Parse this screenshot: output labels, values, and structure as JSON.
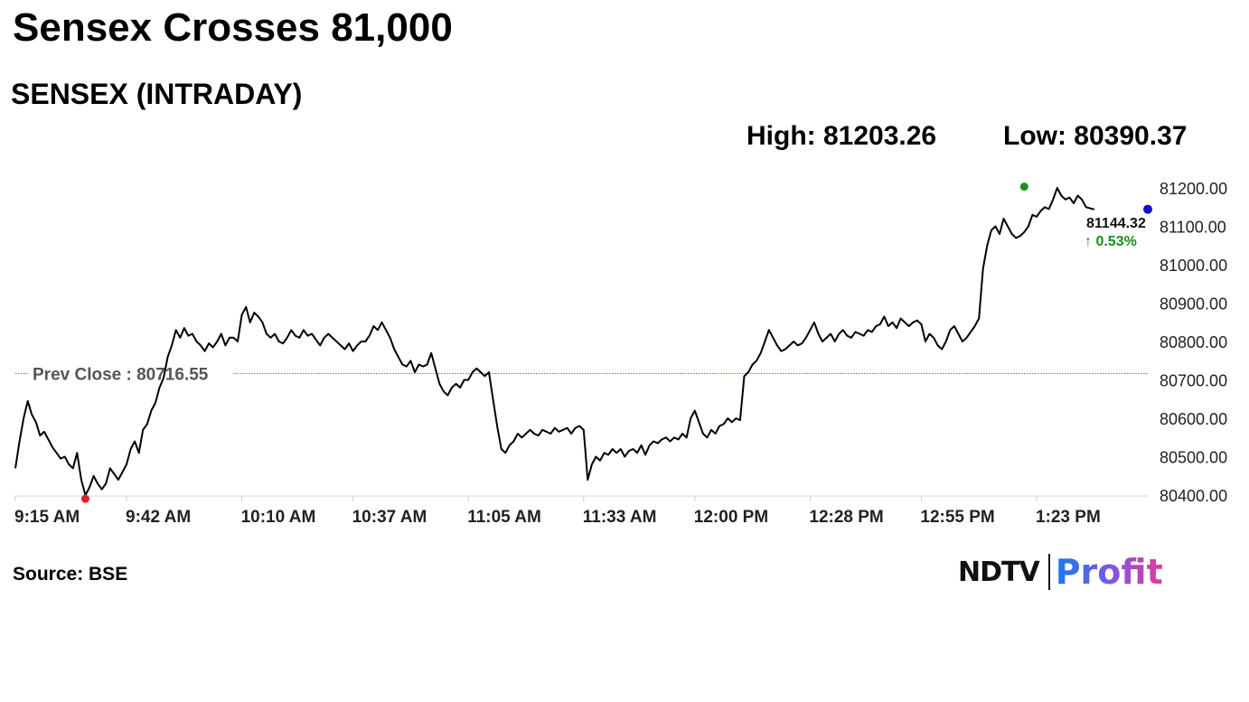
{
  "headline": "Sensex Crosses 81,000",
  "subheadline": "SENSEX (INTRADAY)",
  "stats": {
    "high_label": "High: 81203.26",
    "low_label": "Low: 80390.37"
  },
  "source": "Source: BSE",
  "brand": {
    "ndtv": "NDTV",
    "profit": "Profit"
  },
  "colors": {
    "line": "#000000",
    "prev_close_line": "#d9534f",
    "high_marker": "#1a8f1a",
    "low_marker": "#e02020",
    "last_marker": "#1010c8",
    "up_change": "#1a8f1a"
  },
  "chart_data": {
    "type": "line",
    "title": "SENSEX (INTRADAY)",
    "ylim": [
      80400,
      81250
    ],
    "y_ticks": [
      "80400.00",
      "80500.00",
      "80600.00",
      "80700.00",
      "80800.00",
      "80900.00",
      "81000.00",
      "81100.00",
      "81200.00"
    ],
    "x_ticks": [
      "9:15 AM",
      "9:42 AM",
      "10:10 AM",
      "10:37 AM",
      "11:05 AM",
      "11:33 AM",
      "12:00 PM",
      "12:28 PM",
      "12:55 PM",
      "1:23 PM"
    ],
    "x_unit": "minutes since 9:15 AM",
    "x_tick_minutes": [
      0,
      27,
      55,
      82,
      110,
      138,
      165,
      193,
      220,
      248
    ],
    "x_range": [
      0,
      275
    ],
    "prev_close": 80716.55,
    "prev_close_label": "Prev Close : 80716.55",
    "high": {
      "minute": 245,
      "value": 81203.26
    },
    "low": {
      "minute": 17,
      "value": 80390.37
    },
    "last": {
      "minute": 275,
      "value": 81144.32,
      "label": "81144.32",
      "change_label": "↑ 0.53%"
    },
    "series": [
      {
        "points": [
          [
            0,
            80470
          ],
          [
            1,
            80540
          ],
          [
            2,
            80600
          ],
          [
            3,
            80645
          ],
          [
            4,
            80610
          ],
          [
            5,
            80590
          ],
          [
            6,
            80555
          ],
          [
            7,
            80565
          ],
          [
            8,
            80545
          ],
          [
            9,
            80525
          ],
          [
            10,
            80510
          ],
          [
            11,
            80495
          ],
          [
            12,
            80500
          ],
          [
            13,
            80480
          ],
          [
            14,
            80470
          ],
          [
            15,
            80510
          ],
          [
            16,
            80440
          ],
          [
            17,
            80400
          ],
          [
            18,
            80420
          ],
          [
            19,
            80450
          ],
          [
            20,
            80430
          ],
          [
            21,
            80415
          ],
          [
            22,
            80430
          ],
          [
            23,
            80470
          ],
          [
            24,
            80455
          ],
          [
            25,
            80440
          ],
          [
            26,
            80460
          ],
          [
            27,
            80480
          ],
          [
            28,
            80520
          ],
          [
            29,
            80540
          ],
          [
            30,
            80510
          ],
          [
            31,
            80570
          ],
          [
            32,
            80585
          ],
          [
            33,
            80620
          ],
          [
            34,
            80640
          ],
          [
            35,
            80680
          ],
          [
            36,
            80705
          ],
          [
            37,
            80760
          ],
          [
            38,
            80790
          ],
          [
            39,
            80830
          ],
          [
            40,
            80810
          ],
          [
            41,
            80835
          ],
          [
            42,
            80815
          ],
          [
            43,
            80820
          ],
          [
            44,
            80800
          ],
          [
            45,
            80790
          ],
          [
            46,
            80775
          ],
          [
            47,
            80795
          ],
          [
            48,
            80785
          ],
          [
            49,
            80800
          ],
          [
            50,
            80820
          ],
          [
            51,
            80790
          ],
          [
            52,
            80810
          ],
          [
            53,
            80810
          ],
          [
            54,
            80800
          ],
          [
            55,
            80870
          ],
          [
            56,
            80890
          ],
          [
            57,
            80850
          ],
          [
            58,
            80875
          ],
          [
            59,
            80865
          ],
          [
            60,
            80850
          ],
          [
            61,
            80820
          ],
          [
            62,
            80810
          ],
          [
            63,
            80820
          ],
          [
            64,
            80800
          ],
          [
            65,
            80795
          ],
          [
            66,
            80810
          ],
          [
            67,
            80830
          ],
          [
            68,
            80815
          ],
          [
            69,
            80810
          ],
          [
            70,
            80830
          ],
          [
            71,
            80815
          ],
          [
            72,
            80820
          ],
          [
            73,
            80805
          ],
          [
            74,
            80790
          ],
          [
            75,
            80810
          ],
          [
            76,
            80820
          ],
          [
            77,
            80810
          ],
          [
            78,
            80800
          ],
          [
            79,
            80790
          ],
          [
            80,
            80780
          ],
          [
            81,
            80795
          ],
          [
            82,
            80775
          ],
          [
            83,
            80790
          ],
          [
            84,
            80800
          ],
          [
            85,
            80800
          ],
          [
            86,
            80815
          ],
          [
            87,
            80840
          ],
          [
            88,
            80830
          ],
          [
            89,
            80850
          ],
          [
            90,
            80830
          ],
          [
            91,
            80810
          ],
          [
            92,
            80780
          ],
          [
            93,
            80760
          ],
          [
            94,
            80740
          ],
          [
            95,
            80735
          ],
          [
            96,
            80750
          ],
          [
            97,
            80720
          ],
          [
            98,
            80740
          ],
          [
            99,
            80735
          ],
          [
            100,
            80740
          ],
          [
            101,
            80770
          ],
          [
            102,
            80730
          ],
          [
            103,
            80690
          ],
          [
            104,
            80670
          ],
          [
            105,
            80660
          ],
          [
            106,
            80680
          ],
          [
            107,
            80690
          ],
          [
            108,
            80680
          ],
          [
            109,
            80700
          ],
          [
            110,
            80700
          ],
          [
            111,
            80720
          ],
          [
            112,
            80730
          ],
          [
            113,
            80720
          ],
          [
            114,
            80710
          ],
          [
            115,
            80720
          ],
          [
            116,
            80650
          ],
          [
            117,
            80580
          ],
          [
            118,
            80520
          ],
          [
            119,
            80510
          ],
          [
            120,
            80530
          ],
          [
            121,
            80540
          ],
          [
            122,
            80560
          ],
          [
            123,
            80550
          ],
          [
            124,
            80560
          ],
          [
            125,
            80570
          ],
          [
            126,
            80560
          ],
          [
            127,
            80555
          ],
          [
            128,
            80570
          ],
          [
            129,
            80565
          ],
          [
            130,
            80560
          ],
          [
            131,
            80575
          ],
          [
            132,
            80565
          ],
          [
            133,
            80570
          ],
          [
            134,
            80575
          ],
          [
            135,
            80560
          ],
          [
            136,
            80575
          ],
          [
            137,
            80580
          ],
          [
            138,
            80570
          ],
          [
            139,
            80440
          ],
          [
            140,
            80480
          ],
          [
            141,
            80500
          ],
          [
            142,
            80490
          ],
          [
            143,
            80510
          ],
          [
            144,
            80505
          ],
          [
            145,
            80520
          ],
          [
            146,
            80510
          ],
          [
            147,
            80520
          ],
          [
            148,
            80500
          ],
          [
            149,
            80515
          ],
          [
            150,
            80520
          ],
          [
            151,
            80510
          ],
          [
            152,
            80530
          ],
          [
            153,
            80505
          ],
          [
            154,
            80530
          ],
          [
            155,
            80540
          ],
          [
            156,
            80535
          ],
          [
            157,
            80545
          ],
          [
            158,
            80550
          ],
          [
            159,
            80540
          ],
          [
            160,
            80550
          ],
          [
            161,
            80545
          ],
          [
            162,
            80560
          ],
          [
            163,
            80550
          ],
          [
            164,
            80600
          ],
          [
            165,
            80620
          ],
          [
            166,
            80590
          ],
          [
            167,
            80560
          ],
          [
            168,
            80550
          ],
          [
            169,
            80570
          ],
          [
            170,
            80560
          ],
          [
            171,
            80580
          ],
          [
            172,
            80585
          ],
          [
            173,
            80600
          ],
          [
            174,
            80590
          ],
          [
            175,
            80600
          ],
          [
            176,
            80595
          ],
          [
            177,
            80710
          ],
          [
            178,
            80720
          ],
          [
            179,
            80740
          ],
          [
            180,
            80750
          ],
          [
            181,
            80770
          ],
          [
            182,
            80800
          ],
          [
            183,
            80830
          ],
          [
            184,
            80810
          ],
          [
            185,
            80790
          ],
          [
            186,
            80775
          ],
          [
            187,
            80780
          ],
          [
            188,
            80790
          ],
          [
            189,
            80800
          ],
          [
            190,
            80790
          ],
          [
            191,
            80795
          ],
          [
            192,
            80810
          ],
          [
            193,
            80830
          ],
          [
            194,
            80850
          ],
          [
            195,
            80820
          ],
          [
            196,
            80800
          ],
          [
            197,
            80810
          ],
          [
            198,
            80820
          ],
          [
            199,
            80800
          ],
          [
            200,
            80820
          ],
          [
            201,
            80830
          ],
          [
            202,
            80815
          ],
          [
            203,
            80810
          ],
          [
            204,
            80825
          ],
          [
            205,
            80820
          ],
          [
            206,
            80815
          ],
          [
            207,
            80830
          ],
          [
            208,
            80825
          ],
          [
            209,
            80840
          ],
          [
            210,
            80845
          ],
          [
            211,
            80865
          ],
          [
            212,
            80840
          ],
          [
            213,
            80850
          ],
          [
            214,
            80835
          ],
          [
            215,
            80860
          ],
          [
            216,
            80850
          ],
          [
            217,
            80840
          ],
          [
            218,
            80850
          ],
          [
            219,
            80855
          ],
          [
            220,
            80845
          ],
          [
            221,
            80800
          ],
          [
            222,
            80820
          ],
          [
            223,
            80810
          ],
          [
            224,
            80790
          ],
          [
            225,
            80780
          ],
          [
            226,
            80800
          ],
          [
            227,
            80830
          ],
          [
            228,
            80840
          ],
          [
            229,
            80820
          ],
          [
            230,
            80800
          ],
          [
            231,
            80810
          ],
          [
            232,
            80825
          ],
          [
            233,
            80840
          ],
          [
            234,
            80860
          ],
          [
            235,
            80990
          ],
          [
            236,
            81050
          ],
          [
            237,
            81090
          ],
          [
            238,
            81100
          ],
          [
            239,
            81080
          ],
          [
            240,
            81120
          ],
          [
            241,
            81100
          ],
          [
            242,
            81080
          ],
          [
            243,
            81070
          ],
          [
            244,
            81075
          ],
          [
            245,
            81085
          ],
          [
            246,
            81100
          ],
          [
            247,
            81130
          ],
          [
            248,
            81125
          ],
          [
            249,
            81140
          ],
          [
            250,
            81150
          ],
          [
            251,
            81145
          ],
          [
            252,
            81170
          ],
          [
            253,
            81200
          ],
          [
            254,
            81180
          ],
          [
            255,
            81170
          ],
          [
            256,
            81175
          ],
          [
            257,
            81160
          ],
          [
            258,
            81180
          ],
          [
            259,
            81170
          ],
          [
            260,
            81150
          ],
          [
            262,
            81144
          ]
        ]
      }
    ]
  }
}
